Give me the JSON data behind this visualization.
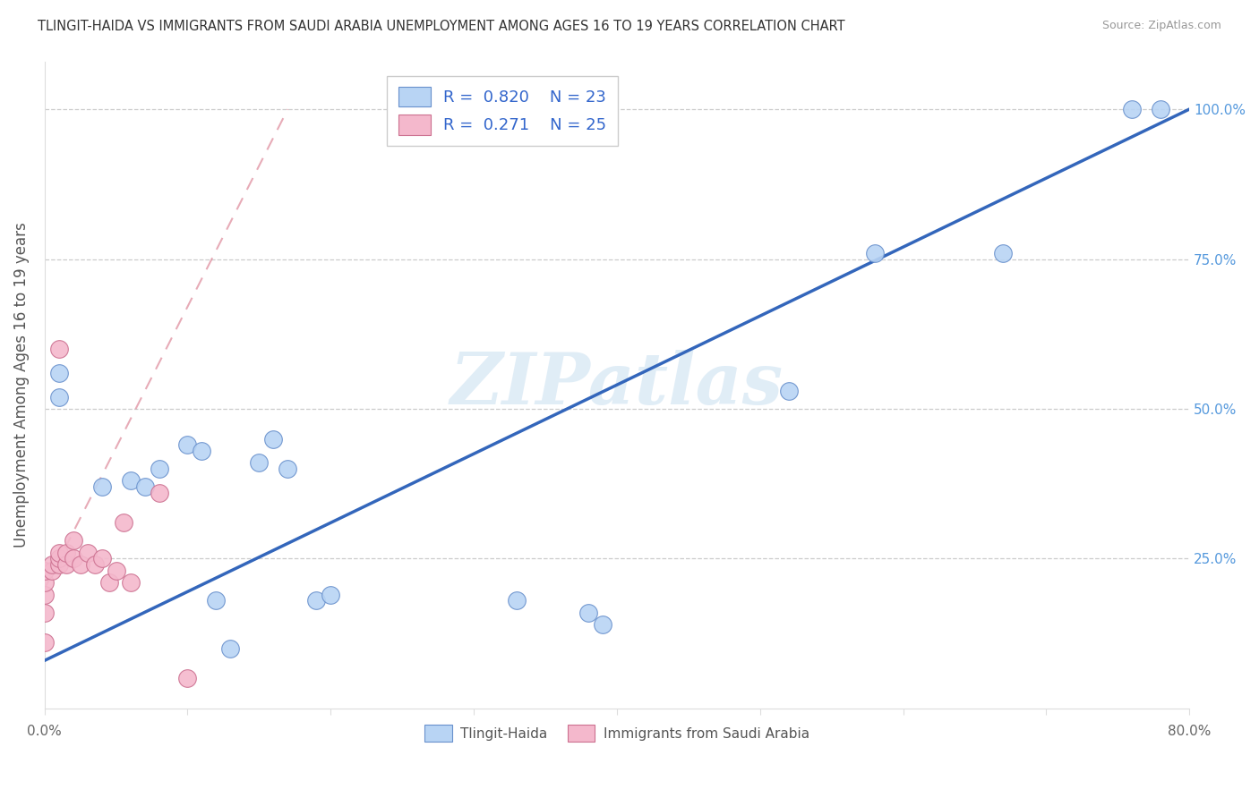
{
  "title": "TLINGIT-HAIDA VS IMMIGRANTS FROM SAUDI ARABIA UNEMPLOYMENT AMONG AGES 16 TO 19 YEARS CORRELATION CHART",
  "source": "Source: ZipAtlas.com",
  "ylabel": "Unemployment Among Ages 16 to 19 years",
  "xlim": [
    0,
    0.8
  ],
  "ylim": [
    0,
    1.08
  ],
  "xticks": [
    0.0,
    0.1,
    0.2,
    0.3,
    0.4,
    0.5,
    0.6,
    0.7,
    0.8
  ],
  "xticklabels": [
    "0.0%",
    "",
    "",
    "",
    "",
    "",
    "",
    "",
    "80.0%"
  ],
  "yticks_right": [
    0.0,
    0.25,
    0.5,
    0.75,
    1.0
  ],
  "yticklabels_right": [
    "",
    "25.0%",
    "50.0%",
    "75.0%",
    "100.0%"
  ],
  "blue_color": "#b8d4f4",
  "pink_color": "#f4b8cc",
  "blue_edge": "#6890cc",
  "pink_edge": "#cc7090",
  "regression_blue_color": "#3366bb",
  "regression_pink_color": "#dd8899",
  "watermark_color": "#c8dff0",
  "watermark_text": "ZIPatlas",
  "legend_R_blue": "0.820",
  "legend_N_blue": "23",
  "legend_R_pink": "0.271",
  "legend_N_pink": "25",
  "blue_x": [
    0.01,
    0.01,
    0.04,
    0.06,
    0.07,
    0.08,
    0.1,
    0.11,
    0.12,
    0.13,
    0.15,
    0.16,
    0.17,
    0.19,
    0.2,
    0.33,
    0.38,
    0.39,
    0.52,
    0.58,
    0.67,
    0.76,
    0.78
  ],
  "blue_y": [
    0.56,
    0.52,
    0.37,
    0.38,
    0.37,
    0.4,
    0.44,
    0.43,
    0.18,
    0.1,
    0.41,
    0.45,
    0.4,
    0.18,
    0.19,
    0.18,
    0.16,
    0.14,
    0.53,
    0.76,
    0.76,
    1.0,
    1.0
  ],
  "pink_x": [
    0.0,
    0.0,
    0.0,
    0.0,
    0.0,
    0.005,
    0.005,
    0.01,
    0.01,
    0.01,
    0.01,
    0.015,
    0.015,
    0.02,
    0.02,
    0.025,
    0.03,
    0.035,
    0.04,
    0.045,
    0.05,
    0.055,
    0.06,
    0.08,
    0.1
  ],
  "pink_y": [
    0.11,
    0.16,
    0.19,
    0.21,
    0.23,
    0.23,
    0.24,
    0.24,
    0.25,
    0.26,
    0.6,
    0.24,
    0.26,
    0.25,
    0.28,
    0.24,
    0.26,
    0.24,
    0.25,
    0.21,
    0.23,
    0.31,
    0.21,
    0.36,
    0.05
  ]
}
